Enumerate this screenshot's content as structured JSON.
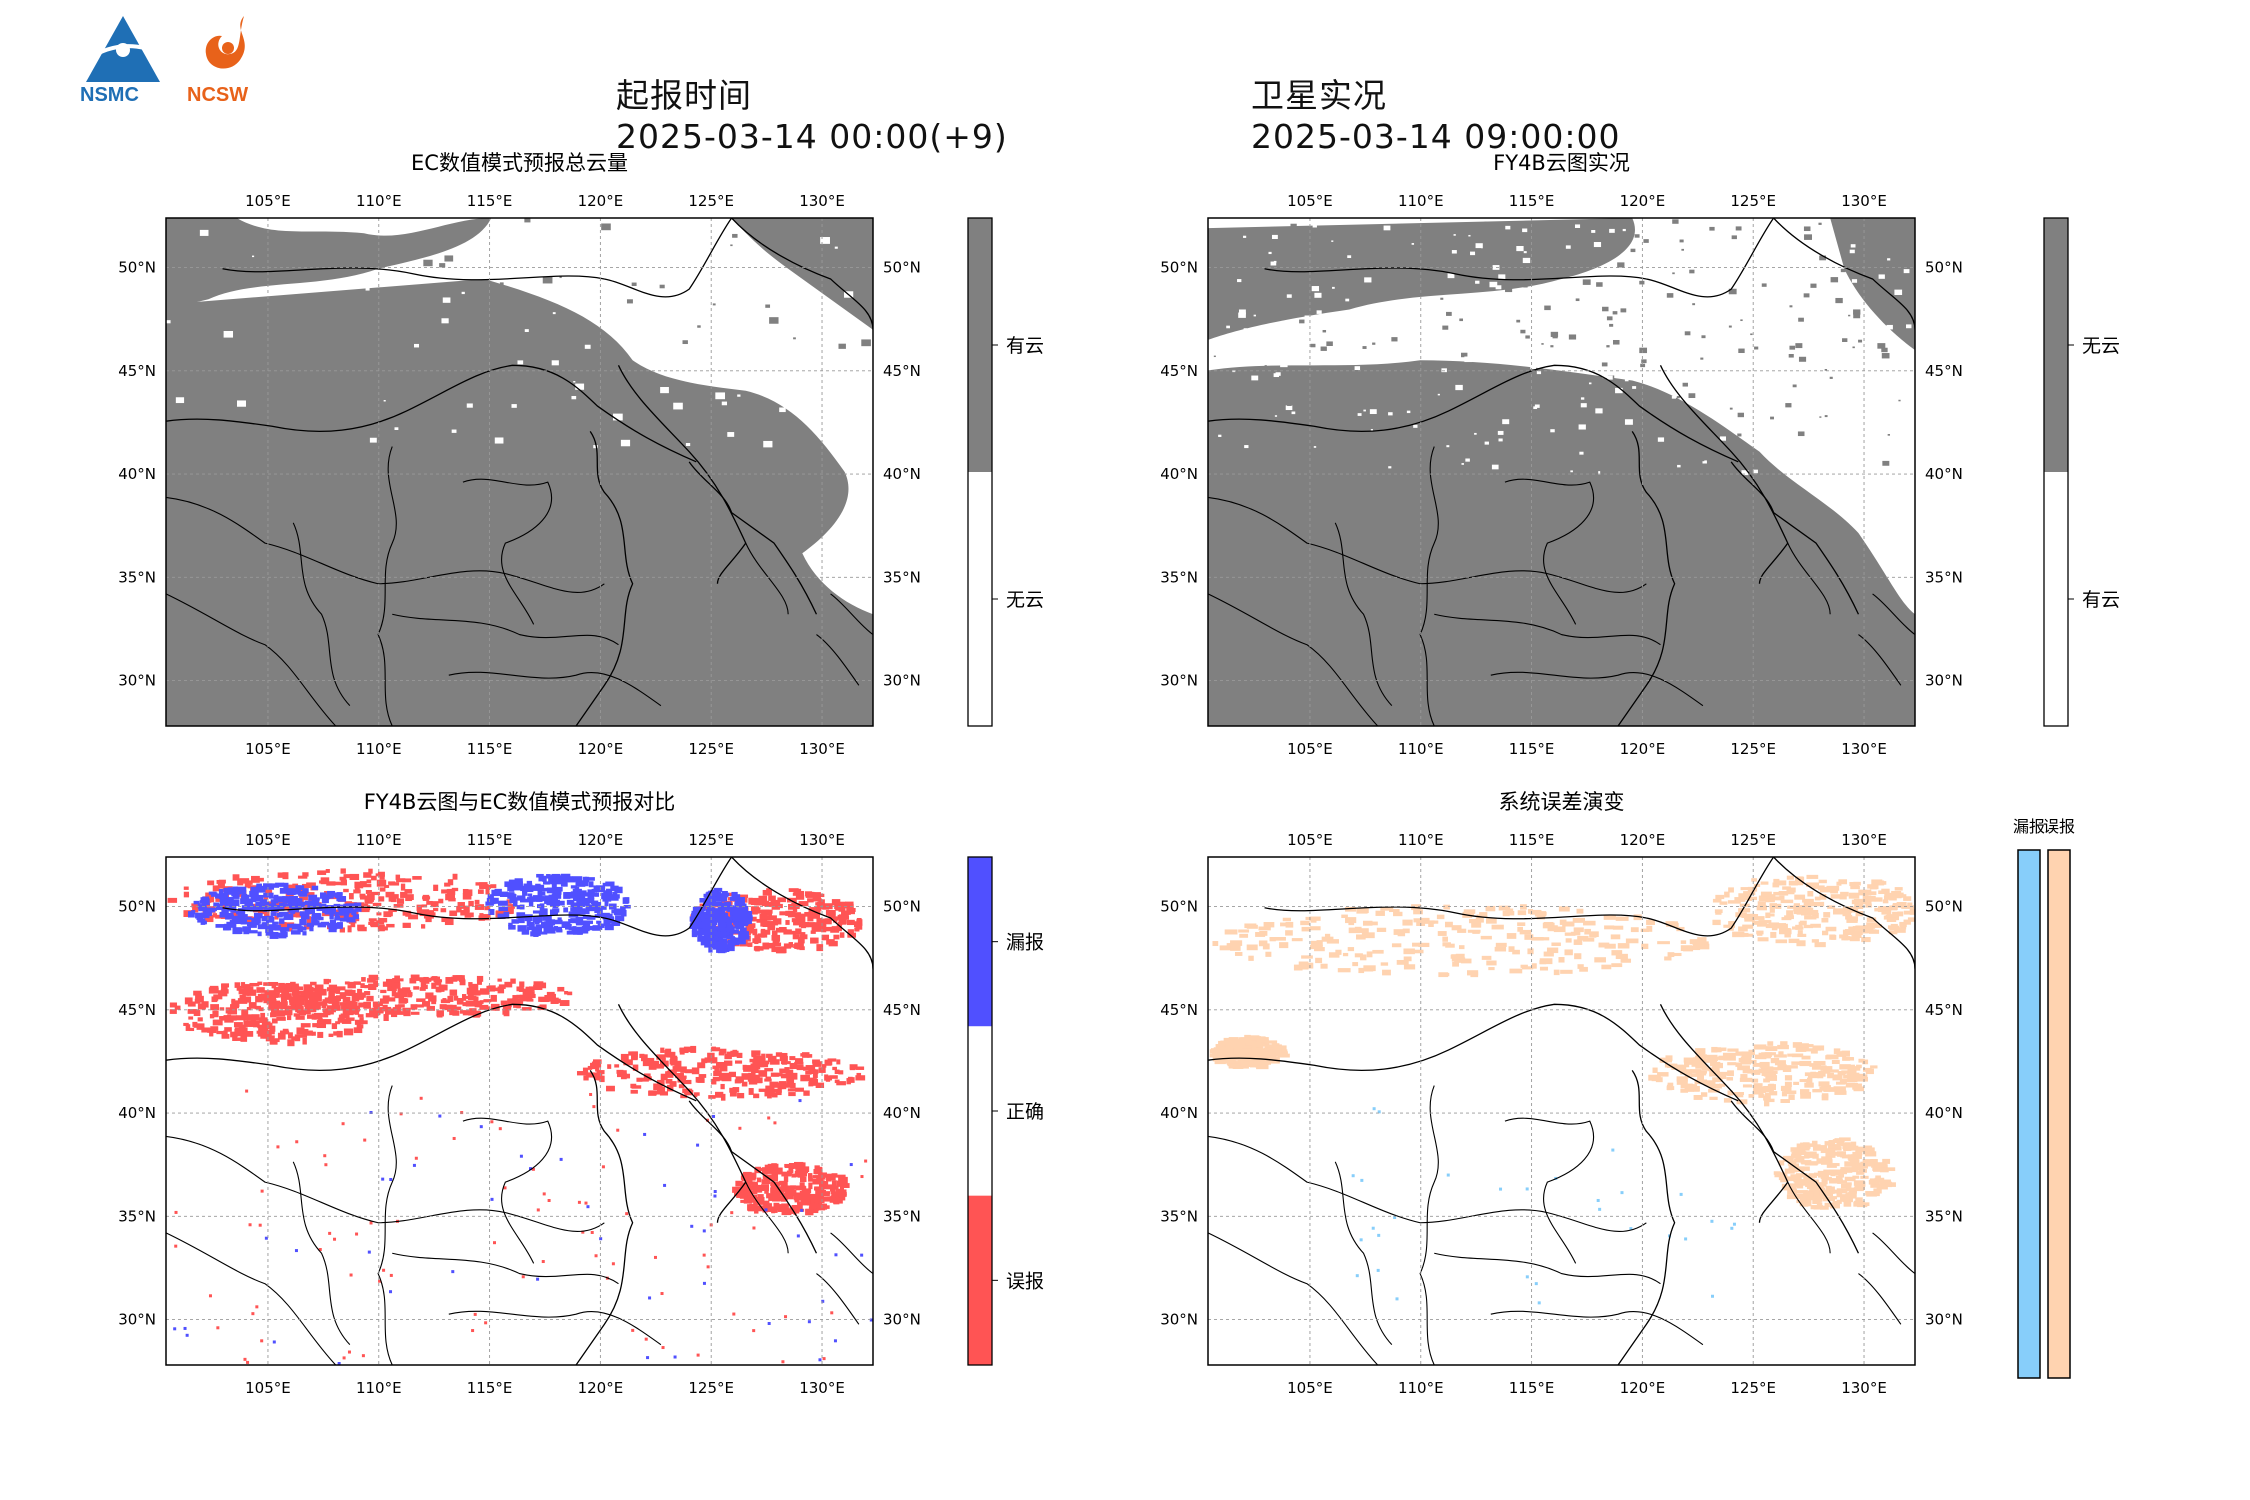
{
  "header": {
    "issue_label": "起报时间",
    "issue_time": "2025-03-14 00:00(+9)",
    "obs_label": "卫星实况",
    "obs_time": "2025-03-14 09:00:00",
    "logos": [
      {
        "name": "nsmc-logo",
        "text": "NSMC",
        "color": "#1f6fb5"
      },
      {
        "name": "ncsw-logo",
        "text": "NCSW",
        "color": "#e8621a"
      }
    ]
  },
  "axes": {
    "lon_ticks": [
      "105°E",
      "110°E",
      "115°E",
      "120°E",
      "125°E",
      "130°E"
    ],
    "lat_ticks": [
      "50°N",
      "45°N",
      "40°N",
      "35°N",
      "30°N"
    ],
    "lon_values": [
      105,
      110,
      115,
      120,
      125,
      130
    ],
    "lat_values": [
      50,
      45,
      40,
      35,
      30
    ],
    "lon_range": [
      100.4,
      132.3
    ],
    "lat_range": [
      27.8,
      52.4
    ],
    "grid": "dashed"
  },
  "panels": [
    {
      "title": "EC数值模式预报总云量",
      "type": "binary-cloud",
      "fill": "#808080",
      "colorbar": {
        "segments": [
          {
            "label": "有云",
            "color": "#808080"
          },
          {
            "label": "无云",
            "color": "#ffffff"
          }
        ]
      }
    },
    {
      "title": "FY4B云图实况",
      "type": "binary-cloud",
      "fill": "#808080",
      "colorbar": {
        "segments": [
          {
            "label": "无云",
            "color": "#808080"
          },
          {
            "label": "有云",
            "color": "#ffffff"
          }
        ]
      }
    },
    {
      "title": "FY4B云图与EC数值模式预报对比",
      "type": "comparison",
      "colors": {
        "miss": "#5050ff",
        "false": "#ff5454"
      },
      "colorbar": {
        "segments": [
          {
            "label": "漏报",
            "color": "#5050ff"
          },
          {
            "label": "正确",
            "color": "#ffffff"
          },
          {
            "label": "误报",
            "color": "#ff5454"
          }
        ]
      }
    },
    {
      "title": "系统误差演变",
      "type": "error-evolution",
      "colors": {
        "miss": "#87cefa",
        "false": "#ffd3b0"
      },
      "bars": [
        {
          "label": "漏报",
          "color": "#87cefa"
        },
        {
          "label": "误报",
          "color": "#ffd3b0"
        }
      ]
    }
  ]
}
